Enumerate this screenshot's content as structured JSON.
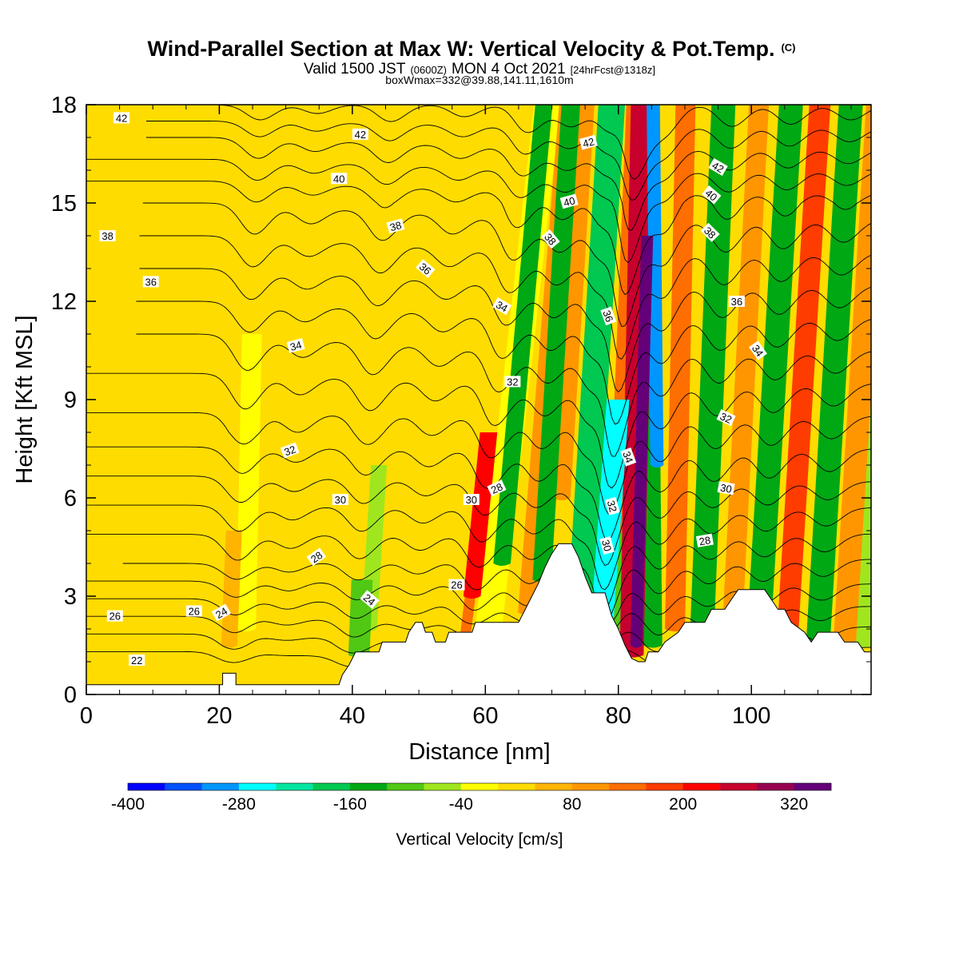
{
  "title": {
    "main": "Wind-Parallel Section at Max W: Vertical Velocity & Pot.Temp.",
    "copyright": "(C)",
    "valid_prefix": "Valid 1500 JST",
    "valid_utc": "(0600Z)",
    "valid_date": "MON 4 Oct 2021",
    "valid_fcst": "[24hrFcst@1318z]",
    "box_info": "boxWmax=332@39.88,141.11,1610m"
  },
  "chart_data": {
    "type": "heatmap",
    "xlabel": "Distance [nm]",
    "ylabel": "Height [Kft MSL]",
    "xlim": [
      0,
      118
    ],
    "ylim": [
      0,
      18
    ],
    "x_ticks": [
      "0",
      "20",
      "40",
      "60",
      "80",
      "100"
    ],
    "x_tick_values": [
      0,
      20,
      40,
      60,
      80,
      100
    ],
    "y_ticks": [
      "0",
      "3",
      "6",
      "9",
      "12",
      "15",
      "18"
    ],
    "y_tick_values": [
      0,
      3,
      6,
      9,
      12,
      15,
      18
    ],
    "colorbar": {
      "title": "Vertical Velocity [cm/s]",
      "labels": [
        "-400",
        "-280",
        "-160",
        "-40",
        "80",
        "200",
        "320"
      ],
      "label_values": [
        -400,
        -280,
        -160,
        -40,
        80,
        200,
        320
      ],
      "range": [
        -400,
        360
      ],
      "bin_width": 40,
      "colors": [
        "#0000ff",
        "#0050ff",
        "#0096ff",
        "#00ffff",
        "#00e6a0",
        "#00c850",
        "#00a814",
        "#50c814",
        "#a0e61e",
        "#ffff00",
        "#ffdc00",
        "#ffb400",
        "#ff9600",
        "#ff6e00",
        "#ff3c00",
        "#ff0000",
        "#c8002d",
        "#960050",
        "#640078"
      ]
    },
    "background_color": "#ffdc00",
    "velocity_bands": [
      {
        "x": 21.5,
        "z_bot": 1.5,
        "z_top": 5.0,
        "slope": 0.2,
        "half_width": 1.2,
        "value": 60
      },
      {
        "x": 24,
        "z_bot": 2.0,
        "z_top": 11.0,
        "slope": 0.1,
        "half_width": 1.5,
        "value": -40
      },
      {
        "x": 31,
        "z_bot": 4.0,
        "z_top": 16.0,
        "slope": 0.2,
        "half_width": 2.0,
        "value": 0
      },
      {
        "x": 41,
        "z_bot": 1.2,
        "z_top": 3.5,
        "slope": 0.2,
        "half_width": 1.6,
        "value": -120
      },
      {
        "x": 42.5,
        "z_bot": 2.0,
        "z_top": 7.0,
        "slope": 0.3,
        "half_width": 1.2,
        "value": -70
      },
      {
        "x": 47.5,
        "z_bot": 2.0,
        "z_top": 12.0,
        "slope": 0.4,
        "half_width": 1.5,
        "value": 0
      },
      {
        "x": 52,
        "z_bot": 5.0,
        "z_top": 18.0,
        "slope": 0.6,
        "half_width": 2.0,
        "value": 20
      },
      {
        "x": 57,
        "z_bot": 1.8,
        "z_top": 6.0,
        "slope": 0.6,
        "half_width": 0.8,
        "value": 120
      },
      {
        "x": 58,
        "z_bot": 3.0,
        "z_top": 8.0,
        "slope": 0.5,
        "half_width": 1.3,
        "value": 220
      },
      {
        "x": 60.5,
        "z_bot": 2.0,
        "z_top": 18.0,
        "slope": 0.55,
        "half_width": 2.0,
        "value": -40
      },
      {
        "x": 62.5,
        "z_bot": 4.0,
        "z_top": 18.0,
        "slope": 0.45,
        "half_width": 1.3,
        "value": -140
      },
      {
        "x": 66.5,
        "z_bot": 2.5,
        "z_top": 18.0,
        "slope": 0.4,
        "half_width": 1.6,
        "value": 100
      },
      {
        "x": 68.5,
        "z_bot": 3.5,
        "z_top": 18.0,
        "slope": 0.3,
        "half_width": 1.4,
        "value": -160
      },
      {
        "x": 71.5,
        "z_bot": 6.0,
        "z_top": 18.0,
        "slope": 0.3,
        "half_width": 1.3,
        "value": 80
      },
      {
        "x": 74.5,
        "z_bot": 3.0,
        "z_top": 18.0,
        "slope": 0.3,
        "half_width": 2.0,
        "value": -170
      },
      {
        "x": 77.5,
        "z_bot": 2.0,
        "z_top": 9.0,
        "slope": 0.35,
        "half_width": 1.7,
        "value": -280
      },
      {
        "x": 79,
        "z_bot": 2.0,
        "z_top": 18.0,
        "slope": 0.3,
        "half_width": 1.5,
        "value": -120
      },
      {
        "x": 80,
        "z_bot": 5.0,
        "z_top": 18.0,
        "slope": 0.2,
        "half_width": 1.4,
        "value": 120
      },
      {
        "x": 82,
        "z_bot": 1.2,
        "z_top": 18.0,
        "slope": 0.1,
        "half_width": 1.8,
        "value": 260
      },
      {
        "x": 82.7,
        "z_bot": 1.5,
        "z_top": 14.0,
        "slope": 0.13,
        "half_width": 0.9,
        "value": 340
      },
      {
        "x": 85.2,
        "z_bot": 1.5,
        "z_top": 18.0,
        "slope": -0.05,
        "half_width": 1.4,
        "value": -160
      },
      {
        "x": 85.8,
        "z_bot": 7.0,
        "z_top": 18.0,
        "slope": -0.05,
        "half_width": 1.0,
        "value": -300
      },
      {
        "x": 88.5,
        "z_bot": 2.0,
        "z_top": 18.0,
        "slope": 0.1,
        "half_width": 1.5,
        "value": 140
      },
      {
        "x": 92.5,
        "z_bot": 1.5,
        "z_top": 18.0,
        "slope": 0.2,
        "half_width": 1.8,
        "value": -140
      },
      {
        "x": 97,
        "z_bot": 1.5,
        "z_top": 18.0,
        "slope": 0.25,
        "half_width": 1.5,
        "value": 100
      },
      {
        "x": 101,
        "z_bot": 1.5,
        "z_top": 18.0,
        "slope": 0.3,
        "half_width": 1.8,
        "value": -160
      },
      {
        "x": 105.5,
        "z_bot": 2.0,
        "z_top": 18.0,
        "slope": 0.3,
        "half_width": 1.6,
        "value": 160
      },
      {
        "x": 107.5,
        "z_bot": 2.0,
        "z_top": 18.0,
        "slope": 0.3,
        "half_width": 1.2,
        "value": 0
      },
      {
        "x": 110,
        "z_bot": 1.5,
        "z_top": 18.0,
        "slope": 0.3,
        "half_width": 1.8,
        "value": -140
      },
      {
        "x": 114,
        "z_bot": 1.5,
        "z_top": 18.0,
        "slope": 0.3,
        "half_width": 1.7,
        "value": 100
      },
      {
        "x": 117,
        "z_bot": 1.5,
        "z_top": 18.0,
        "slope": 0.3,
        "half_width": 1.5,
        "value": -70
      }
    ],
    "terrain": [
      [
        0,
        0.3
      ],
      [
        20.5,
        0.3
      ],
      [
        20.5,
        0.65
      ],
      [
        22.5,
        0.65
      ],
      [
        22.5,
        0.3
      ],
      [
        38,
        0.3
      ],
      [
        38.5,
        0.6
      ],
      [
        39.5,
        0.9
      ],
      [
        40,
        1.1
      ],
      [
        40.5,
        1.3
      ],
      [
        44,
        1.3
      ],
      [
        44.5,
        1.6
      ],
      [
        48,
        1.6
      ],
      [
        48.5,
        1.9
      ],
      [
        49.5,
        2.2
      ],
      [
        50.5,
        2.2
      ],
      [
        51,
        1.9
      ],
      [
        52,
        1.9
      ],
      [
        52.5,
        1.6
      ],
      [
        54,
        1.6
      ],
      [
        54.5,
        1.9
      ],
      [
        58,
        1.9
      ],
      [
        58.5,
        2.2
      ],
      [
        65,
        2.2
      ],
      [
        66,
        2.6
      ],
      [
        67,
        3.0
      ],
      [
        68,
        3.4
      ],
      [
        69,
        3.9
      ],
      [
        70,
        4.3
      ],
      [
        71,
        4.6
      ],
      [
        73,
        4.6
      ],
      [
        74,
        4.2
      ],
      [
        75,
        3.6
      ],
      [
        76,
        3.1
      ],
      [
        78,
        3.1
      ],
      [
        79,
        2.4
      ],
      [
        80,
        2.0
      ],
      [
        81,
        1.5
      ],
      [
        82,
        1.1
      ],
      [
        83,
        1.0
      ],
      [
        84,
        1.0
      ],
      [
        84.5,
        1.3
      ],
      [
        86,
        1.3
      ],
      [
        87,
        1.6
      ],
      [
        89,
        1.9
      ],
      [
        90,
        2.2
      ],
      [
        93,
        2.2
      ],
      [
        94,
        2.6
      ],
      [
        96,
        2.6
      ],
      [
        97,
        2.9
      ],
      [
        98,
        3.2
      ],
      [
        102,
        3.2
      ],
      [
        103,
        2.9
      ],
      [
        104,
        2.6
      ],
      [
        105,
        2.6
      ],
      [
        106,
        2.2
      ],
      [
        108,
        1.9
      ],
      [
        109,
        1.6
      ],
      [
        110,
        1.9
      ],
      [
        113,
        1.9
      ],
      [
        114,
        1.6
      ],
      [
        116,
        1.6
      ],
      [
        117,
        1.3
      ],
      [
        118,
        1.3
      ]
    ],
    "contour_levels": [
      22,
      23,
      24,
      25,
      26,
      27,
      28,
      29,
      30,
      31,
      32,
      33,
      34,
      35,
      36,
      37,
      38,
      39,
      40,
      41,
      42,
      43
    ],
    "theta_model": {
      "base_far": [
        [
          0.5,
          20.5
        ],
        [
          4,
          27
        ],
        [
          8,
          31.5
        ],
        [
          11,
          34
        ],
        [
          13,
          36
        ],
        [
          15,
          38
        ],
        [
          17,
          41
        ],
        [
          18,
          43
        ]
      ],
      "base_near": [
        [
          0.5,
          21.5
        ],
        [
          3,
          25.5
        ],
        [
          4.5,
          27.5
        ],
        [
          6.5,
          30
        ],
        [
          9,
          32.5
        ],
        [
          11,
          34.5
        ],
        [
          13,
          36.5
        ],
        [
          15,
          38.5
        ],
        [
          17,
          41.5
        ],
        [
          18,
          43
        ]
      ],
      "near_weight_ramp": [
        20,
        70
      ],
      "waves": [
        {
          "x": 22,
          "amp": 0.9,
          "width": 3,
          "z_lo": 1,
          "z_hi": 18,
          "slope": 0.25
        },
        {
          "x": 30,
          "amp": 0.5,
          "width": 3,
          "z_lo": 2,
          "z_hi": 18,
          "slope": 0.3
        },
        {
          "x": 40,
          "amp": 0.9,
          "width": 3,
          "z_lo": 1,
          "z_hi": 18,
          "slope": 0.35
        },
        {
          "x": 49,
          "amp": 0.6,
          "width": 3,
          "z_lo": 2,
          "z_hi": 18,
          "slope": 0.5
        },
        {
          "x": 58,
          "amp": 1.3,
          "width": 3,
          "z_lo": 2,
          "z_hi": 18,
          "slope": 0.55
        },
        {
          "x": 66,
          "amp": 1.0,
          "width": 3,
          "z_lo": 2,
          "z_hi": 18,
          "slope": 0.45
        },
        {
          "x": 73.5,
          "amp": 1.1,
          "width": 2.5,
          "z_lo": 3,
          "z_hi": 18,
          "slope": 0.35
        },
        {
          "x": 77.5,
          "amp": 3.2,
          "width": 2.4,
          "z_lo": 2,
          "z_hi": 18,
          "slope": 0.35
        },
        {
          "x": 86,
          "amp": 1.4,
          "width": 3,
          "z_lo": 1,
          "z_hi": 18,
          "slope": 0.05
        },
        {
          "x": 93,
          "amp": 1.0,
          "width": 3,
          "z_lo": 1,
          "z_hi": 18,
          "slope": 0.25
        },
        {
          "x": 101,
          "amp": 0.9,
          "width": 3,
          "z_lo": 1,
          "z_hi": 18,
          "slope": 0.3
        },
        {
          "x": 110,
          "amp": 0.7,
          "width": 3,
          "z_lo": 1,
          "z_hi": 18,
          "slope": 0.3
        }
      ]
    },
    "contour_labels": [
      {
        "text": "42",
        "x": 5.3,
        "z": 17.6,
        "angle": 0
      },
      {
        "text": "42",
        "x": 41.2,
        "z": 17.1,
        "angle": 0
      },
      {
        "text": "42",
        "x": 75.5,
        "z": 16.85,
        "angle": -15
      },
      {
        "text": "42",
        "x": 95,
        "z": 16.1,
        "angle": 30
      },
      {
        "text": "40",
        "x": 38,
        "z": 15.75,
        "angle": 0
      },
      {
        "text": "40",
        "x": 72.6,
        "z": 15.05,
        "angle": -15
      },
      {
        "text": "40",
        "x": 94,
        "z": 15.25,
        "angle": 40
      },
      {
        "text": "38",
        "x": 3.2,
        "z": 14.0,
        "angle": 0
      },
      {
        "text": "38",
        "x": 46.5,
        "z": 14.3,
        "angle": -15
      },
      {
        "text": "38",
        "x": 69.8,
        "z": 13.9,
        "angle": 50
      },
      {
        "text": "38",
        "x": 93.8,
        "z": 14.1,
        "angle": 45
      },
      {
        "text": "36",
        "x": 9.7,
        "z": 12.6,
        "angle": 0
      },
      {
        "text": "36",
        "x": 51,
        "z": 13.0,
        "angle": 40
      },
      {
        "text": "36",
        "x": 78.5,
        "z": 11.55,
        "angle": 70
      },
      {
        "text": "36",
        "x": 97.8,
        "z": 12.0,
        "angle": 0
      },
      {
        "text": "34",
        "x": 31.5,
        "z": 10.65,
        "angle": -15
      },
      {
        "text": "34",
        "x": 62.5,
        "z": 11.85,
        "angle": 30
      },
      {
        "text": "34",
        "x": 101,
        "z": 10.5,
        "angle": 55
      },
      {
        "text": "34",
        "x": 81.5,
        "z": 7.25,
        "angle": 70
      },
      {
        "text": "32",
        "x": 64.1,
        "z": 9.55,
        "angle": 0
      },
      {
        "text": "32",
        "x": 30.6,
        "z": 7.45,
        "angle": -20
      },
      {
        "text": "32",
        "x": 96.2,
        "z": 8.45,
        "angle": 25
      },
      {
        "text": "32",
        "x": 79.1,
        "z": 5.75,
        "angle": 75
      },
      {
        "text": "30",
        "x": 38.2,
        "z": 5.95,
        "angle": 0
      },
      {
        "text": "30",
        "x": 57.9,
        "z": 5.95,
        "angle": 0
      },
      {
        "text": "30",
        "x": 96.2,
        "z": 6.3,
        "angle": 10
      },
      {
        "text": "30",
        "x": 78.3,
        "z": 4.55,
        "angle": 75
      },
      {
        "text": "28",
        "x": 61.7,
        "z": 6.3,
        "angle": -25
      },
      {
        "text": "28",
        "x": 34.6,
        "z": 4.2,
        "angle": -35
      },
      {
        "text": "28",
        "x": 93,
        "z": 4.7,
        "angle": -10
      },
      {
        "text": "26",
        "x": 55.7,
        "z": 3.35,
        "angle": 0
      },
      {
        "text": "26",
        "x": 4.3,
        "z": 2.4,
        "angle": 0
      },
      {
        "text": "26",
        "x": 16.2,
        "z": 2.55,
        "angle": 0
      },
      {
        "text": "24",
        "x": 20.3,
        "z": 2.5,
        "angle": -30
      },
      {
        "text": "24",
        "x": 42.6,
        "z": 2.9,
        "angle": 40
      },
      {
        "text": "22",
        "x": 7.6,
        "z": 1.05,
        "angle": 0
      }
    ]
  }
}
